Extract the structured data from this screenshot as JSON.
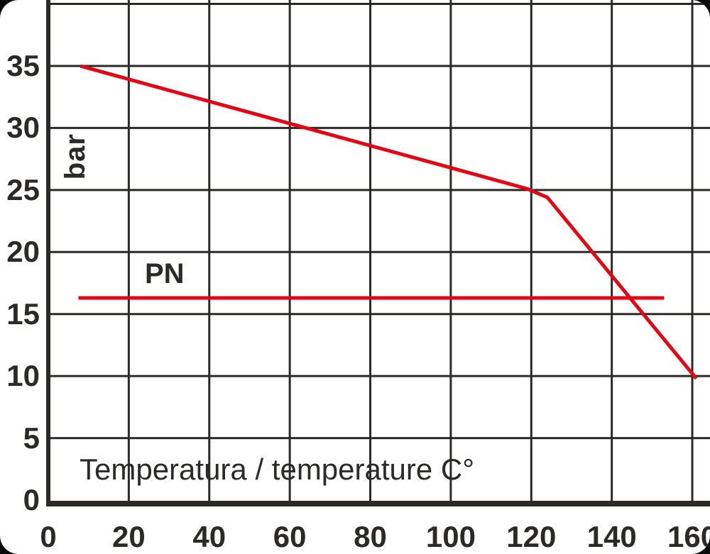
{
  "chart_data": {
    "type": "line",
    "title": "",
    "xlabel": "Temperatura / temperature C°",
    "ylabel": "bar",
    "xlim": [
      0,
      164
    ],
    "ylim": [
      0,
      40.3
    ],
    "x_ticks": [
      0,
      20,
      40,
      60,
      80,
      100,
      120,
      140,
      160
    ],
    "y_ticks": [
      0,
      5,
      10,
      15,
      20,
      25,
      30,
      35
    ],
    "y_gridlines": [
      5,
      10,
      15,
      20,
      25,
      30,
      35,
      40
    ],
    "grid": true,
    "legend": "none",
    "series": [
      {
        "name": "max-pressure-curve",
        "label": "",
        "color": "#e30613",
        "width": 5,
        "points": [
          [
            8,
            35
          ],
          [
            119,
            25.1
          ],
          [
            124,
            24.4
          ],
          [
            161,
            9.8
          ]
        ]
      },
      {
        "name": "pn-line",
        "label": "PN",
        "color": "#e30613",
        "width": 5,
        "points": [
          [
            7.5,
            16.3
          ],
          [
            153,
            16.3
          ]
        ]
      }
    ],
    "colors": {
      "grid": "#2b2a29",
      "axis": "#2b2a29",
      "text": "#2b2a29",
      "line": "#e30613"
    }
  }
}
